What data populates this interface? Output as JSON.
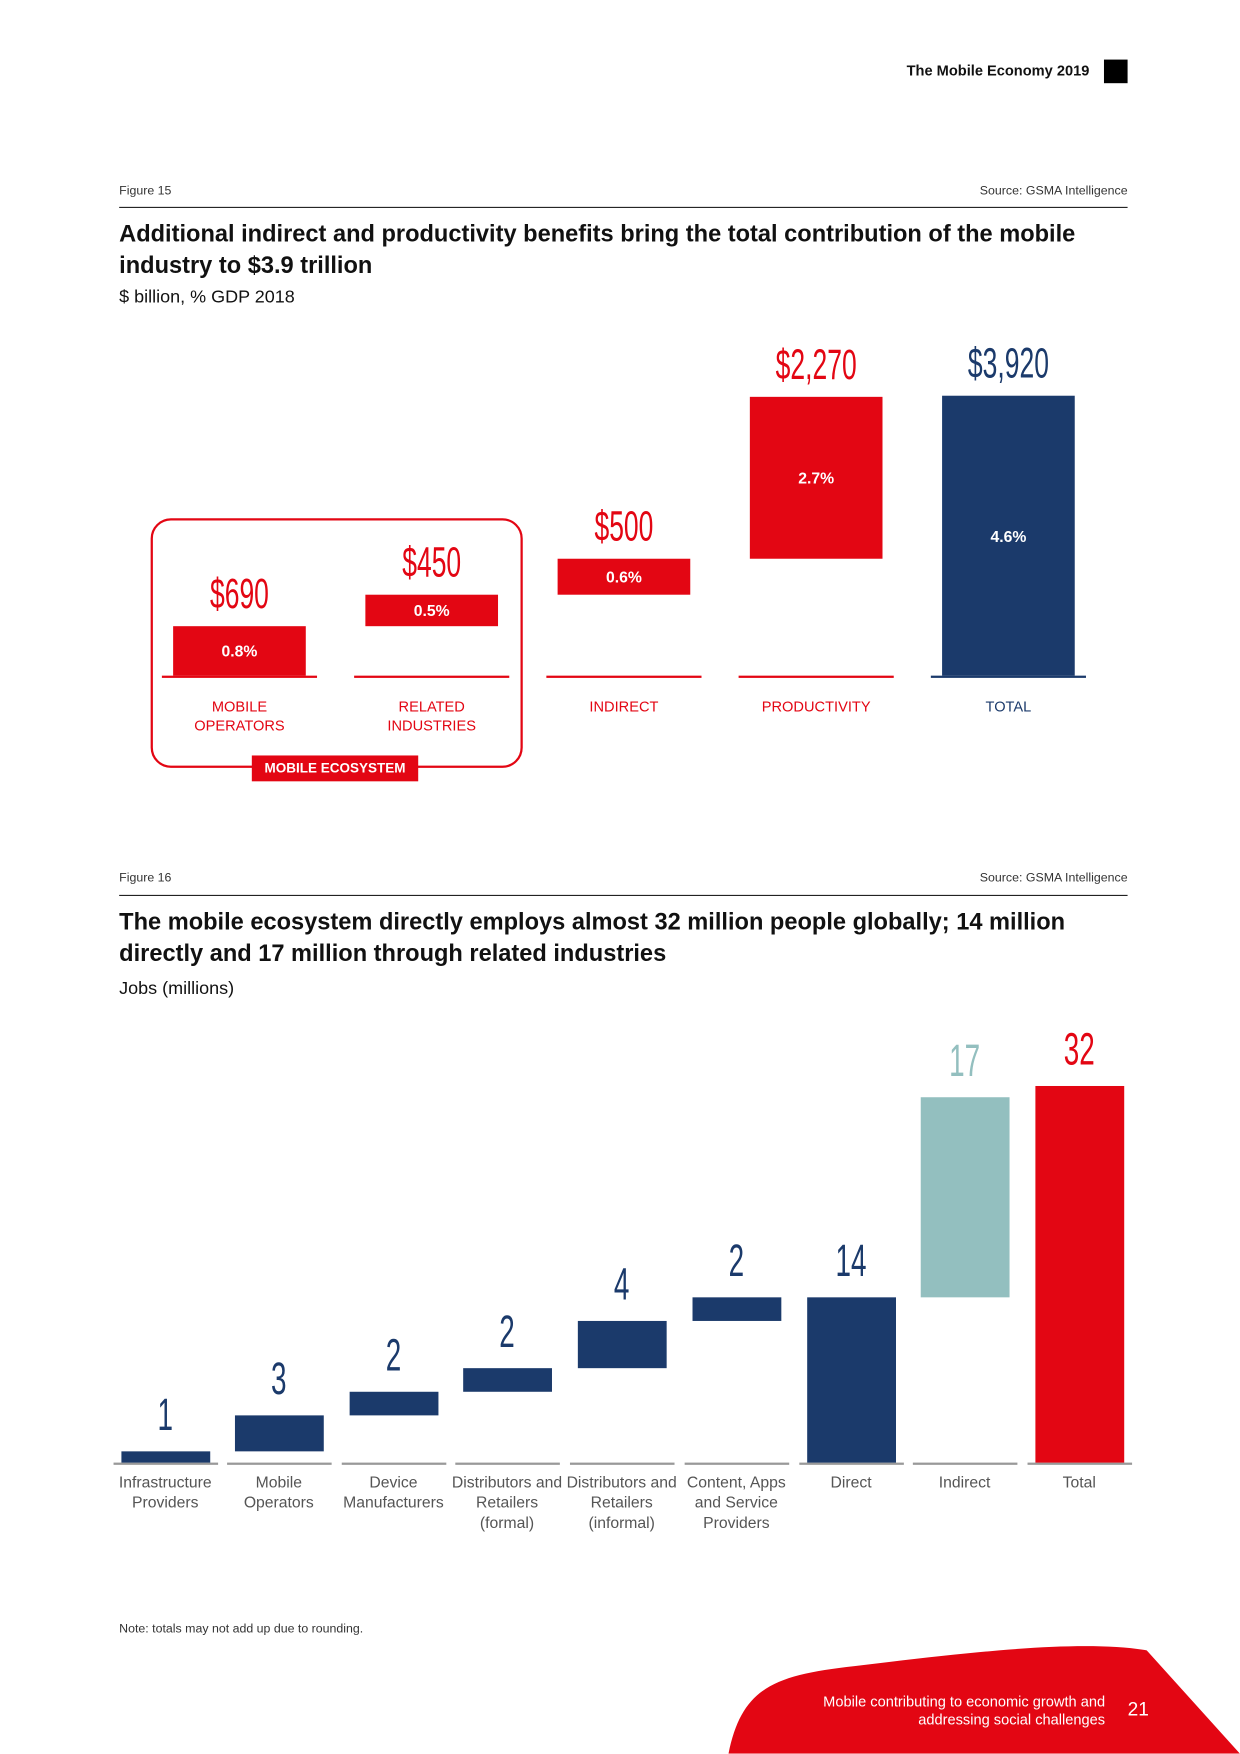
{
  "header": {
    "title": "The Mobile Economy 2019"
  },
  "chart_data": [
    {
      "type": "waterfall",
      "figure": "Figure 15",
      "source": "Source: GSMA Intelligence",
      "title": "Additional indirect and productivity benefits bring the total contribution of the mobile industry to $3.9 trillion",
      "subtitle": "$ billion, % GDP 2018",
      "categories": [
        "MOBILE OPERATORS",
        "RELATED INDUSTRIES",
        "INDIRECT",
        "PRODUCTIVITY",
        "TOTAL"
      ],
      "values": [
        690,
        450,
        500,
        2270,
        3920
      ],
      "value_labels": [
        "$690",
        "$450",
        "$500",
        "$2,270",
        "$3,920"
      ],
      "measure": [
        "relative",
        "relative",
        "relative",
        "relative",
        "total"
      ],
      "colors": [
        "#e30613",
        "#e30613",
        "#e30613",
        "#e30613",
        "#1b3a6b"
      ],
      "share_values": [
        0.8,
        0.5,
        0.6,
        2.7,
        4.6
      ],
      "share_labels": [
        "0.8%",
        "0.5%",
        "0.6%",
        "2.7%",
        "4.6%"
      ],
      "annotation": "MOBILE ECOSYSTEM"
    },
    {
      "type": "waterfall",
      "figure": "Figure 16",
      "source": "Source: GSMA Intelligence",
      "title": "The mobile ecosystem directly employs almost 32 million people globally; 14 million directly and 17 million through related industries",
      "subtitle": "Jobs (millions)",
      "categories": [
        "Infrastructure Providers",
        "Mobile Operators",
        "Device Manufacturers",
        "Distributors and Retailers (formal)",
        "Distributors and Retailers (informal)",
        "Content, Apps and Service Providers",
        "Direct",
        "Indirect",
        "Total"
      ],
      "values": [
        1,
        3,
        2,
        2,
        4,
        2,
        14,
        17,
        32
      ],
      "measure": [
        "relative",
        "relative",
        "relative",
        "relative",
        "relative",
        "relative",
        "total",
        "relative",
        "total"
      ],
      "colors": [
        "#1b3a6b",
        "#1b3a6b",
        "#1b3a6b",
        "#1b3a6b",
        "#1b3a6b",
        "#1b3a6b",
        "#1b3a6b",
        "#93bfbf",
        "#e30613"
      ]
    }
  ],
  "footer": {
    "note": "Note: totals may not add up due to rounding.",
    "section": "Mobile contributing to economic growth and addressing social challenges",
    "page": "21"
  }
}
